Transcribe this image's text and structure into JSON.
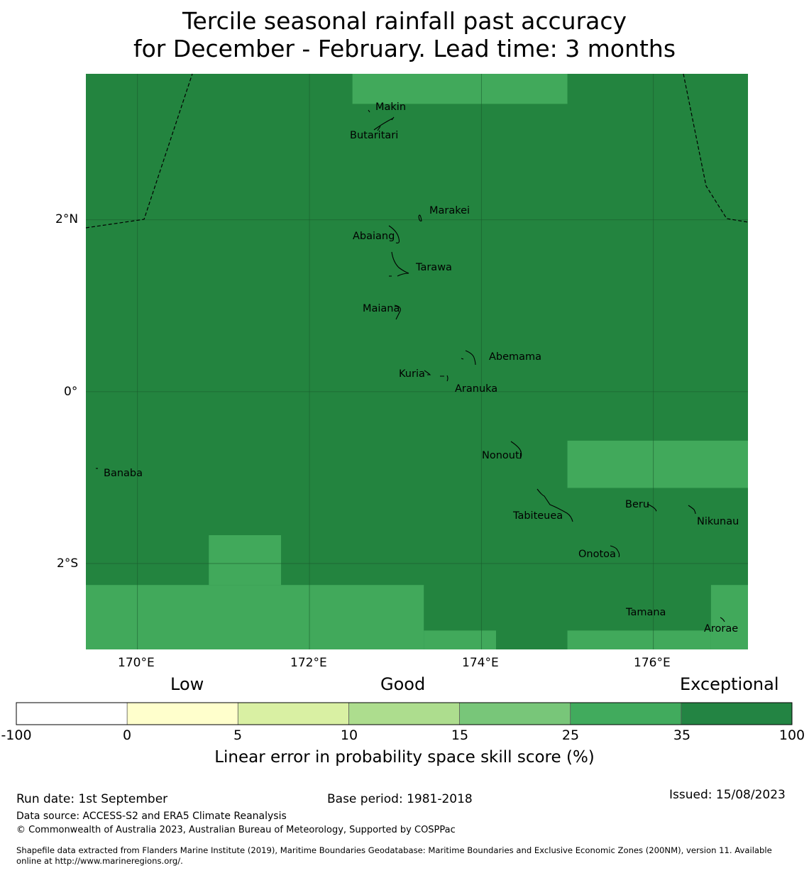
{
  "title": {
    "line1": "Tercile seasonal rainfall past accuracy",
    "line2": "for December - February. Lead time: 3 months"
  },
  "map": {
    "lon_range": [
      169.4,
      177.1
    ],
    "lat_range": [
      -3.0,
      3.7
    ],
    "background_color": "#23843f",
    "lighter_color": "#41a95b",
    "lon_ticks": [
      "170°E",
      "172°E",
      "174°E",
      "176°E"
    ],
    "lat_ticks": [
      "2°N",
      "0°",
      "2°S"
    ],
    "lighter_cells": [
      {
        "lon": [
          172.5,
          175.0
        ],
        "lat": [
          3.35,
          3.7
        ]
      },
      {
        "lon": [
          175.0,
          177.1
        ],
        "lat": [
          -1.12,
          -0.57
        ]
      },
      {
        "lon": [
          170.83,
          171.67
        ],
        "lat": [
          -2.25,
          -1.67
        ]
      },
      {
        "lon": [
          169.4,
          173.33
        ],
        "lat": [
          -3.0,
          -2.25
        ]
      },
      {
        "lon": [
          173.33,
          174.17
        ],
        "lat": [
          -3.0,
          -2.78
        ]
      },
      {
        "lon": [
          175.0,
          176.67
        ],
        "lat": [
          -3.0,
          -2.78
        ]
      },
      {
        "lon": [
          176.67,
          177.1
        ],
        "lat": [
          -3.0,
          -2.25
        ]
      }
    ],
    "places": [
      {
        "name": "Makin",
        "lon": 173.0,
        "lat": 3.38
      },
      {
        "name": "Butaritari",
        "lon": 172.8,
        "lat": 3.05
      },
      {
        "name": "Marakei",
        "lon": 173.3,
        "lat": 2.0
      },
      {
        "name": "Abaiang",
        "lon": 173.0,
        "lat": 1.83
      },
      {
        "name": "Tarawa",
        "lon": 173.0,
        "lat": 1.42
      },
      {
        "name": "Maiana",
        "lon": 173.05,
        "lat": 0.95
      },
      {
        "name": "Abemama",
        "lon": 173.9,
        "lat": 0.4
      },
      {
        "name": "Kuria",
        "lon": 173.42,
        "lat": 0.22
      },
      {
        "name": "Aranuka",
        "lon": 173.6,
        "lat": 0.17
      },
      {
        "name": "Nonouti",
        "lon": 174.4,
        "lat": -0.65
      },
      {
        "name": "Banaba",
        "lon": 169.53,
        "lat": -0.88
      },
      {
        "name": "Tabiteuea",
        "lon": 174.8,
        "lat": -1.38
      },
      {
        "name": "Beru",
        "lon": 176.0,
        "lat": -1.33
      },
      {
        "name": "Nikunau",
        "lon": 176.47,
        "lat": -1.37
      },
      {
        "name": "Onotoa",
        "lon": 175.55,
        "lat": -1.85
      },
      {
        "name": "Tamana",
        "lon": 175.98,
        "lat": -2.5
      },
      {
        "name": "Arorae",
        "lon": 176.82,
        "lat": -2.65
      }
    ]
  },
  "legend": {
    "categories": {
      "low": "Low",
      "good": "Good",
      "exceptional": "Exceptional"
    },
    "colors": [
      "#ffffff",
      "#ffffcc",
      "#d9f0a3",
      "#addd8e",
      "#78c679",
      "#41ab5d",
      "#238443"
    ],
    "ticks": [
      "-100",
      "0",
      "5",
      "10",
      "15",
      "25",
      "35",
      "100"
    ],
    "label": "Linear error in probability space skill score (%)"
  },
  "footer": {
    "run_date": "Run date: 1st September",
    "base_period": "Base period: 1981-2018",
    "issued": "Issued: 15/08/2023",
    "data_source": "Data source: ACCESS-S2 and ERA5 Climate Reanalysis",
    "copyright": "© Commonwealth of Australia 2023, Australian Bureau of Meteorology, Supported by COSPPac",
    "shapefile_line1": "Shapefile data extracted from Flanders Marine Institute (2019), Maritime Boundaries Geodatabase: Maritime Boundaries and Exclusive Economic Zones (200NM), version 11. Available",
    "shapefile_line2": "online at http://www.marineregions.org/."
  }
}
